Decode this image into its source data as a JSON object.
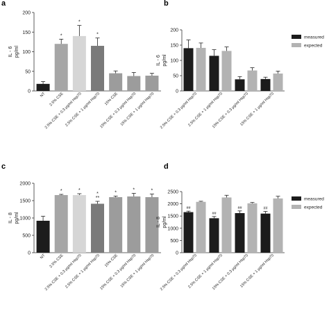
{
  "chart_data": [
    {
      "panel": "a",
      "type": "bar",
      "ylabel": "IL - 6\npg/ml",
      "ylim": [
        0,
        200
      ],
      "yticks": [
        0,
        50,
        100,
        150,
        200
      ],
      "grid": false,
      "categories": [
        "NT",
        "2.5% CSE",
        "2.5% CSE + 0.3 μg/ml Hsp70",
        "2.5% CSE + 1 μg/ml Hsp70",
        "15% CSE",
        "15% CSE + 0.3 μg/ml Hsp70",
        "15% CSE + 1 μg/ml Hsp70"
      ],
      "values": [
        18,
        120,
        140,
        115,
        45,
        38,
        39
      ],
      "errors": [
        6,
        12,
        27,
        20,
        6,
        9,
        6
      ],
      "annotations": [
        "",
        "*",
        "*",
        "*",
        "",
        "",
        ""
      ],
      "colors": [
        "#1c1c1c",
        "#a6a6a6",
        "#d6d6d6",
        "#7a7a7a",
        "#9c9c9c",
        "#9c9c9c",
        "#9c9c9c"
      ]
    },
    {
      "panel": "b",
      "type": "bar",
      "ylabel": "IL - 6\npg/ml",
      "ylim": [
        0,
        200
      ],
      "yticks": [
        0,
        50,
        100,
        150,
        200
      ],
      "grid": false,
      "legend": "top-right",
      "categories": [
        "2.5% CSE + 0.3 μg/ml Hsp70",
        "2.5% CSE + 1 μg/ml Hsp70",
        "15% CSE + 0.3 μg/ml Hsp70",
        "15% CSE + 1 μg/ml Hsp70"
      ],
      "series": [
        {
          "name": "measured",
          "color": "#1c1c1c",
          "values": [
            140,
            115,
            38,
            39
          ],
          "errors": [
            27,
            20,
            9,
            6
          ]
        },
        {
          "name": "expected",
          "color": "#b3b3b3",
          "values": [
            141,
            131,
            67,
            57
          ],
          "errors": [
            16,
            13,
            9,
            8
          ]
        }
      ]
    },
    {
      "panel": "c",
      "type": "bar",
      "ylabel": "IL - 8\npg/ml",
      "ylim": [
        0,
        2000
      ],
      "yticks": [
        0,
        500,
        1000,
        1500,
        2000
      ],
      "grid": false,
      "categories": [
        "NT",
        "2.5% CSE",
        "2.5% CSE + 0.3 μg/ml Hsp70",
        "2.5% CSE + 1 μg/ml Hsp70",
        "15% CSE",
        "15% CSE + 0.3 μg/ml Hsp70",
        "15% CSE + 1 μg/ml Hsp70"
      ],
      "values": [
        920,
        1660,
        1660,
        1410,
        1600,
        1620,
        1600
      ],
      "errors": [
        130,
        20,
        40,
        70,
        30,
        90,
        90
      ],
      "annotations": [
        "",
        "*",
        "*",
        "*\n**",
        "*",
        "*",
        "*"
      ],
      "colors": [
        "#1c1c1c",
        "#a6a6a6",
        "#d6d6d6",
        "#7a7a7a",
        "#9c9c9c",
        "#9c9c9c",
        "#9c9c9c"
      ]
    },
    {
      "panel": "d",
      "type": "bar",
      "ylabel": "IL - 8\npg/ml",
      "ylim": [
        0,
        2500
      ],
      "yticks": [
        0,
        500,
        1000,
        1500,
        2000,
        2500
      ],
      "grid": false,
      "legend": "top-right",
      "categories": [
        "2.5% CSE + 0.3 μg/ml Hsp70",
        "2.5% CSE + 1 μg/ml Hsp70",
        "15% CSE + 0.3 μg/ml Hsp70",
        "15% CSE + 1 μg/ml Hsp70"
      ],
      "annotations": [
        "##",
        "##",
        "##",
        "##"
      ],
      "series": [
        {
          "name": "measured",
          "color": "#1c1c1c",
          "values": [
            1660,
            1410,
            1620,
            1600
          ],
          "errors": [
            40,
            70,
            90,
            90
          ]
        },
        {
          "name": "expected",
          "color": "#b3b3b3",
          "values": [
            2080,
            2260,
            2020,
            2220
          ],
          "errors": [
            25,
            90,
            35,
            90
          ]
        }
      ]
    }
  ]
}
